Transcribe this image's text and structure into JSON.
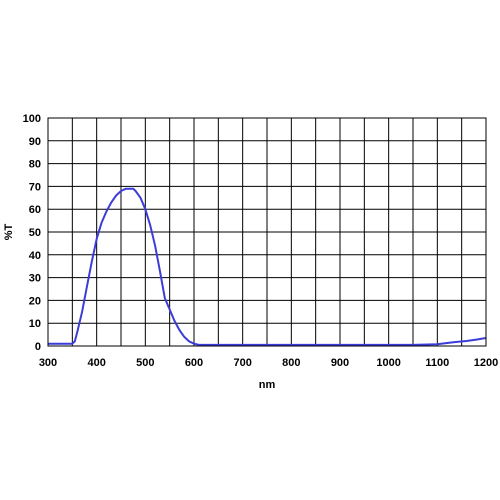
{
  "chart_data": {
    "type": "line",
    "title": "",
    "xlabel": "nm",
    "ylabel": "%T",
    "xlim": [
      300,
      1200
    ],
    "ylim": [
      0,
      100
    ],
    "x_ticks": [
      300,
      400,
      500,
      600,
      700,
      800,
      900,
      1000,
      1100,
      1200
    ],
    "y_ticks": [
      0,
      10,
      20,
      30,
      40,
      50,
      60,
      70,
      80,
      90,
      100
    ],
    "x_minor_step": 50,
    "grid": true,
    "line_color": "#3c3cd8",
    "series": [
      {
        "x": [
          300,
          350,
          355,
          360,
          370,
          380,
          390,
          400,
          410,
          420,
          430,
          440,
          450,
          460,
          470,
          475,
          480,
          490,
          500,
          510,
          520,
          530,
          540,
          550,
          560,
          570,
          580,
          590,
          600,
          610,
          620,
          640,
          700,
          800,
          900,
          1000,
          1050,
          1100,
          1120,
          1140,
          1160,
          1180,
          1200
        ],
        "y": [
          1,
          1,
          2,
          6,
          15,
          26,
          37,
          47,
          54,
          59,
          63,
          66,
          68,
          69,
          69,
          69,
          68,
          65,
          60,
          53,
          44,
          33,
          21,
          16,
          11,
          7,
          4,
          2,
          1,
          0.5,
          0.5,
          0.5,
          0.5,
          0.5,
          0.5,
          0.5,
          0.5,
          0.8,
          1.3,
          1.8,
          2.2,
          2.8,
          3.5
        ]
      }
    ]
  }
}
